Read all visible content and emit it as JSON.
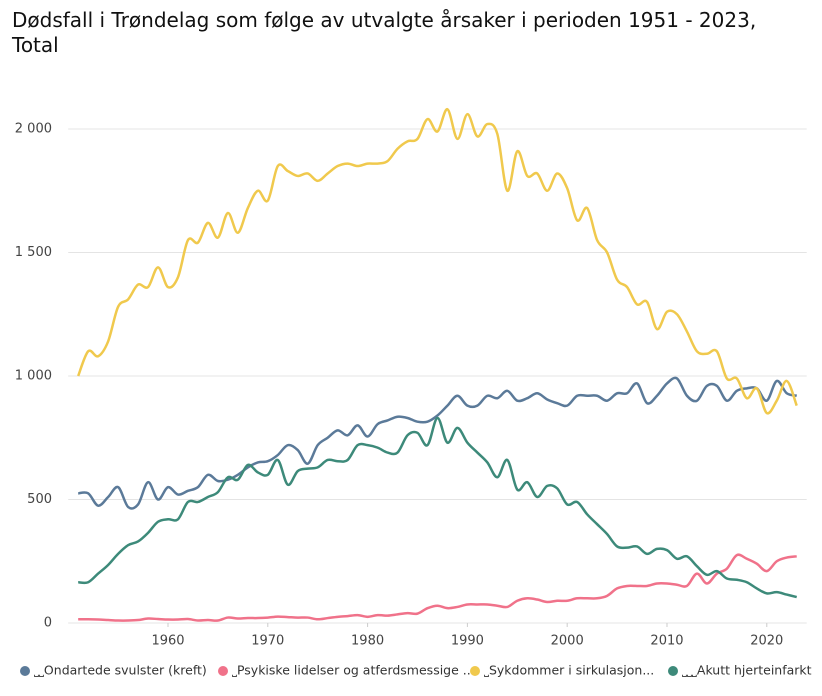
{
  "chart_data": {
    "type": "line",
    "title": "Dødsfall i Trøndelag som følge av utvalgte årsaker i perioden 1951 - 2023, Total",
    "x": [
      1951,
      1952,
      1953,
      1954,
      1955,
      1956,
      1957,
      1958,
      1959,
      1960,
      1961,
      1962,
      1963,
      1964,
      1965,
      1966,
      1967,
      1968,
      1969,
      1970,
      1971,
      1972,
      1973,
      1974,
      1975,
      1976,
      1977,
      1978,
      1979,
      1980,
      1981,
      1982,
      1983,
      1984,
      1985,
      1986,
      1987,
      1988,
      1989,
      1990,
      1991,
      1992,
      1993,
      1994,
      1995,
      1996,
      1997,
      1998,
      1999,
      2000,
      2001,
      2002,
      2003,
      2004,
      2005,
      2006,
      2007,
      2008,
      2009,
      2010,
      2011,
      2012,
      2013,
      2014,
      2015,
      2016,
      2017,
      2018,
      2019,
      2020,
      2021,
      2022,
      2023
    ],
    "xlim": [
      1950,
      2024
    ],
    "xticks": [
      1960,
      1970,
      1980,
      1990,
      2000,
      2010,
      2020
    ],
    "ylim": [
      0,
      2200
    ],
    "yticks": [
      0,
      500,
      {
        "value": 1000,
        "label": "1 000"
      },
      {
        "value": 1500,
        "label": "1 500"
      },
      {
        "value": 2000,
        "label": "2 000"
      }
    ],
    "grid": true,
    "legend": "bottom",
    "series": [
      {
        "name": "˽˽Ondartede svulster (kreft)",
        "color": "#5b7a99",
        "values": [
          525,
          525,
          475,
          510,
          550,
          470,
          480,
          570,
          500,
          550,
          520,
          535,
          550,
          600,
          575,
          580,
          600,
          630,
          650,
          655,
          680,
          720,
          700,
          645,
          720,
          750,
          780,
          760,
          800,
          755,
          805,
          820,
          835,
          830,
          815,
          815,
          840,
          880,
          920,
          880,
          880,
          920,
          910,
          940,
          900,
          910,
          930,
          905,
          890,
          880,
          920,
          920,
          920,
          900,
          930,
          930,
          970,
          890,
          920,
          970,
          990,
          920,
          900,
          960,
          960,
          900,
          940,
          950,
          950,
          900,
          980,
          930,
          920
        ]
      },
      {
        "name": "˽Psykiske lidelser og atferdsmessige ...",
        "color": "#f0728a",
        "values": [
          15,
          15,
          14,
          12,
          10,
          10,
          12,
          18,
          16,
          14,
          14,
          16,
          10,
          12,
          10,
          22,
          18,
          20,
          20,
          22,
          26,
          24,
          22,
          22,
          15,
          20,
          25,
          28,
          32,
          25,
          32,
          30,
          35,
          40,
          38,
          60,
          70,
          60,
          65,
          75,
          75,
          75,
          70,
          65,
          90,
          100,
          95,
          85,
          90,
          90,
          100,
          100,
          100,
          110,
          140,
          150,
          150,
          150,
          160,
          160,
          155,
          150,
          200,
          160,
          200,
          220,
          275,
          260,
          240,
          210,
          250,
          265,
          270
        ]
      },
      {
        "name": "˽Sykdommer i sirkulasjon...",
        "color": "#f0c94d",
        "values": [
          1000,
          1100,
          1080,
          1140,
          1280,
          1310,
          1370,
          1360,
          1440,
          1360,
          1400,
          1550,
          1540,
          1620,
          1560,
          1660,
          1580,
          1680,
          1750,
          1710,
          1850,
          1830,
          1810,
          1820,
          1790,
          1820,
          1850,
          1860,
          1850,
          1860,
          1860,
          1870,
          1920,
          1950,
          1960,
          2040,
          1990,
          2080,
          1960,
          2060,
          1970,
          2020,
          1980,
          1750,
          1910,
          1810,
          1820,
          1750,
          1820,
          1760,
          1630,
          1680,
          1550,
          1500,
          1390,
          1360,
          1290,
          1300,
          1190,
          1260,
          1250,
          1180,
          1100,
          1090,
          1100,
          990,
          990,
          910,
          950,
          850,
          900,
          980,
          880
        ]
      },
      {
        "name": "˽˽˽Akutt hjerteinfarkt",
        "color": "#3d8a7a",
        "values": [
          165,
          165,
          200,
          235,
          280,
          315,
          330,
          365,
          410,
          420,
          420,
          490,
          490,
          510,
          530,
          590,
          580,
          640,
          610,
          600,
          660,
          560,
          615,
          625,
          630,
          660,
          655,
          660,
          720,
          720,
          710,
          690,
          690,
          760,
          770,
          720,
          830,
          730,
          790,
          730,
          690,
          650,
          590,
          660,
          540,
          570,
          510,
          555,
          545,
          480,
          490,
          440,
          400,
          360,
          310,
          305,
          310,
          280,
          300,
          295,
          260,
          270,
          230,
          195,
          210,
          180,
          175,
          165,
          140,
          120,
          125,
          115,
          105
        ]
      }
    ]
  }
}
